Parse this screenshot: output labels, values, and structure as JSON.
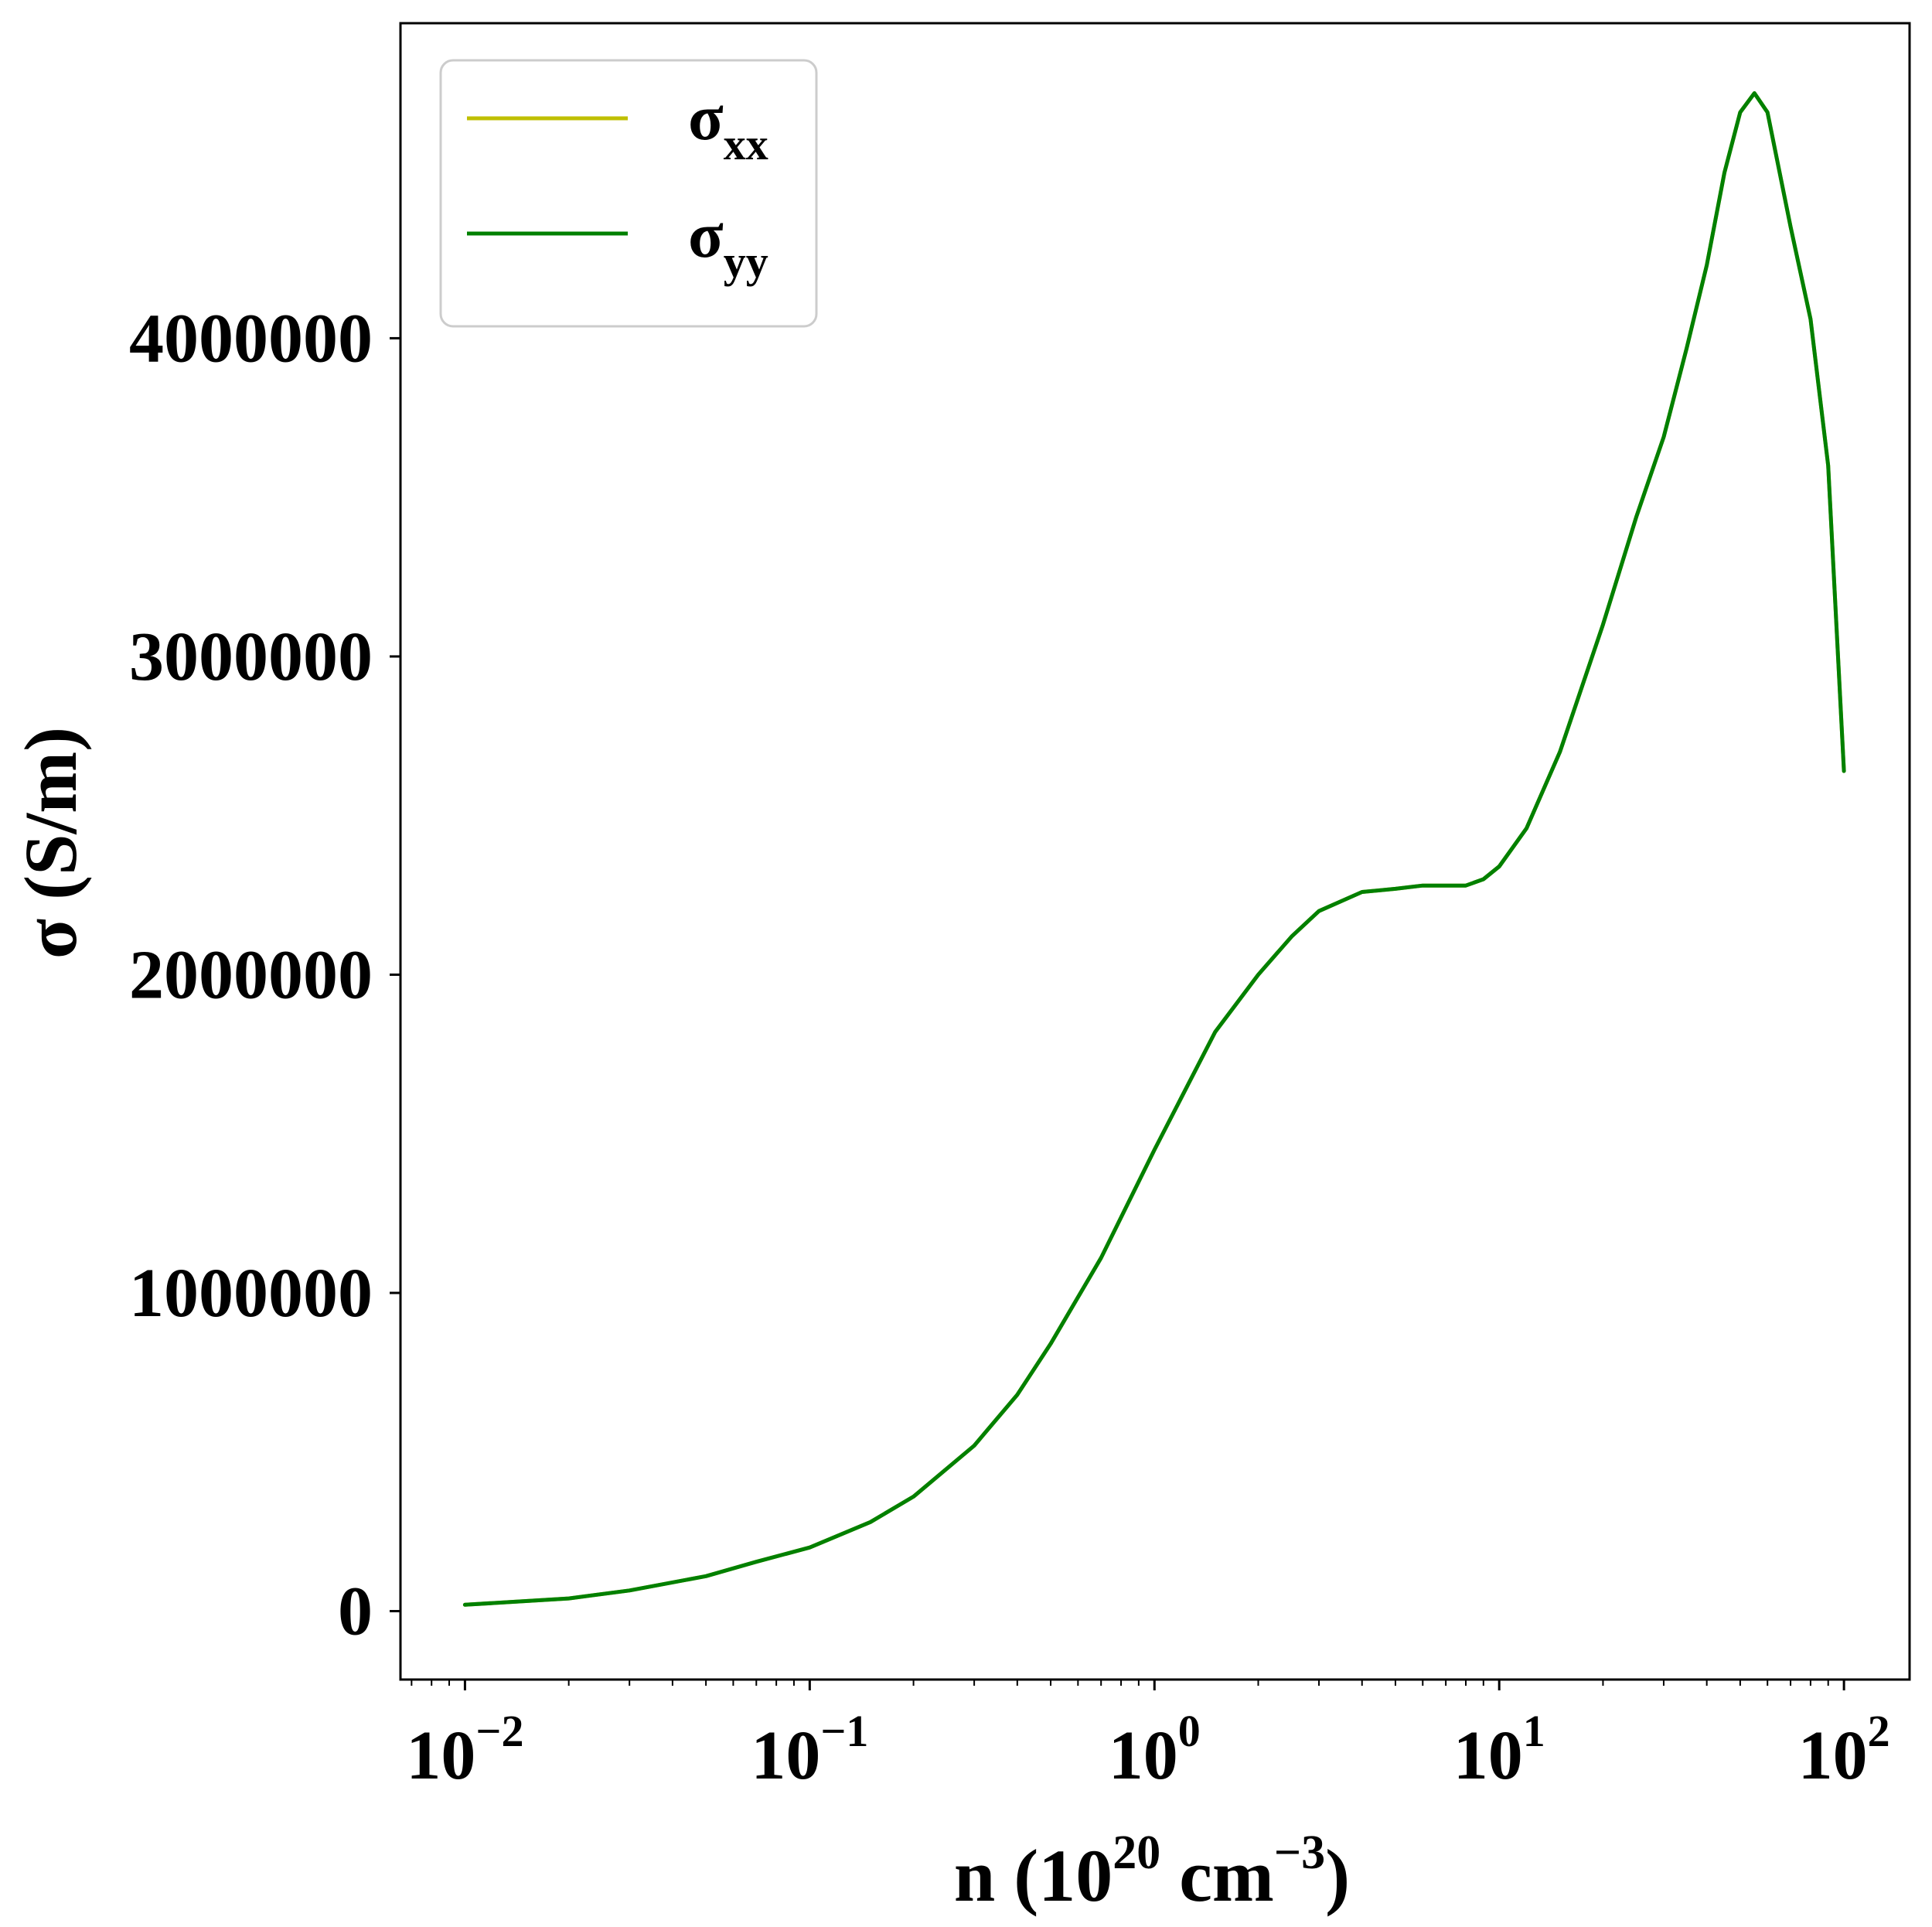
{
  "chart_data": {
    "type": "line",
    "x_scale": "log",
    "y_scale": "linear",
    "xlim": [
      0.0065,
      155
    ],
    "ylim": [
      -215000,
      4990000
    ],
    "xlabel": {
      "text": "n (10",
      "sup1": "20",
      "mid": " cm",
      "sup2": "−3",
      "end": ")"
    },
    "ylabel": "σ (S/m)",
    "x_ticks": [
      {
        "value": 0.01,
        "base": "10",
        "exp": "−2"
      },
      {
        "value": 0.1,
        "base": "10",
        "exp": "−1"
      },
      {
        "value": 1,
        "base": "10",
        "exp": "0"
      },
      {
        "value": 10,
        "base": "10",
        "exp": "1"
      },
      {
        "value": 100,
        "base": "10",
        "exp": "2"
      }
    ],
    "y_ticks": [
      {
        "value": 0,
        "label": "0"
      },
      {
        "value": 1000000,
        "label": "1000000"
      },
      {
        "value": 2000000,
        "label": "2000000"
      },
      {
        "value": 3000000,
        "label": "3000000"
      },
      {
        "value": 4000000,
        "label": "4000000"
      }
    ],
    "grid": false,
    "legend_position": "top-left",
    "series": [
      {
        "name": "σ",
        "subscript": "xx",
        "color": "#bfbf00",
        "x": [
          0.01,
          0.02,
          0.03,
          0.05,
          0.07,
          0.1,
          0.15,
          0.2,
          0.3,
          0.4,
          0.5,
          0.7,
          1.0,
          1.5,
          2.0,
          2.5,
          3.0,
          4.0,
          5.0,
          6.0,
          7.0,
          8.0,
          9.0,
          10,
          12,
          15,
          20,
          25,
          30,
          35,
          40,
          45,
          50,
          55,
          60,
          70,
          80,
          90,
          100
        ],
        "y": [
          20000,
          40000,
          65000,
          110000,
          155000,
          200000,
          280000,
          360000,
          520000,
          680000,
          840000,
          1110000,
          1450000,
          1820000,
          2000000,
          2120000,
          2200000,
          2260000,
          2270000,
          2280000,
          2280000,
          2280000,
          2300000,
          2340000,
          2460000,
          2700000,
          3100000,
          3440000,
          3690000,
          3970000,
          4230000,
          4520000,
          4710000,
          4770000,
          4710000,
          4350000,
          4060000,
          3600000,
          2640000
        ]
      },
      {
        "name": "σ",
        "subscript": "yy",
        "color": "#008000",
        "x": [
          0.01,
          0.02,
          0.03,
          0.05,
          0.07,
          0.1,
          0.15,
          0.2,
          0.3,
          0.4,
          0.5,
          0.7,
          1.0,
          1.5,
          2.0,
          2.5,
          3.0,
          4.0,
          5.0,
          6.0,
          7.0,
          8.0,
          9.0,
          10,
          12,
          15,
          20,
          25,
          30,
          35,
          40,
          45,
          50,
          55,
          60,
          70,
          80,
          90,
          100
        ],
        "y": [
          20000,
          40000,
          65000,
          110000,
          155000,
          200000,
          280000,
          360000,
          520000,
          680000,
          840000,
          1110000,
          1450000,
          1820000,
          2000000,
          2120000,
          2200000,
          2260000,
          2270000,
          2280000,
          2280000,
          2280000,
          2300000,
          2340000,
          2460000,
          2700000,
          3100000,
          3440000,
          3690000,
          3970000,
          4230000,
          4520000,
          4710000,
          4770000,
          4710000,
          4350000,
          4060000,
          3600000,
          2640000
        ]
      }
    ]
  }
}
